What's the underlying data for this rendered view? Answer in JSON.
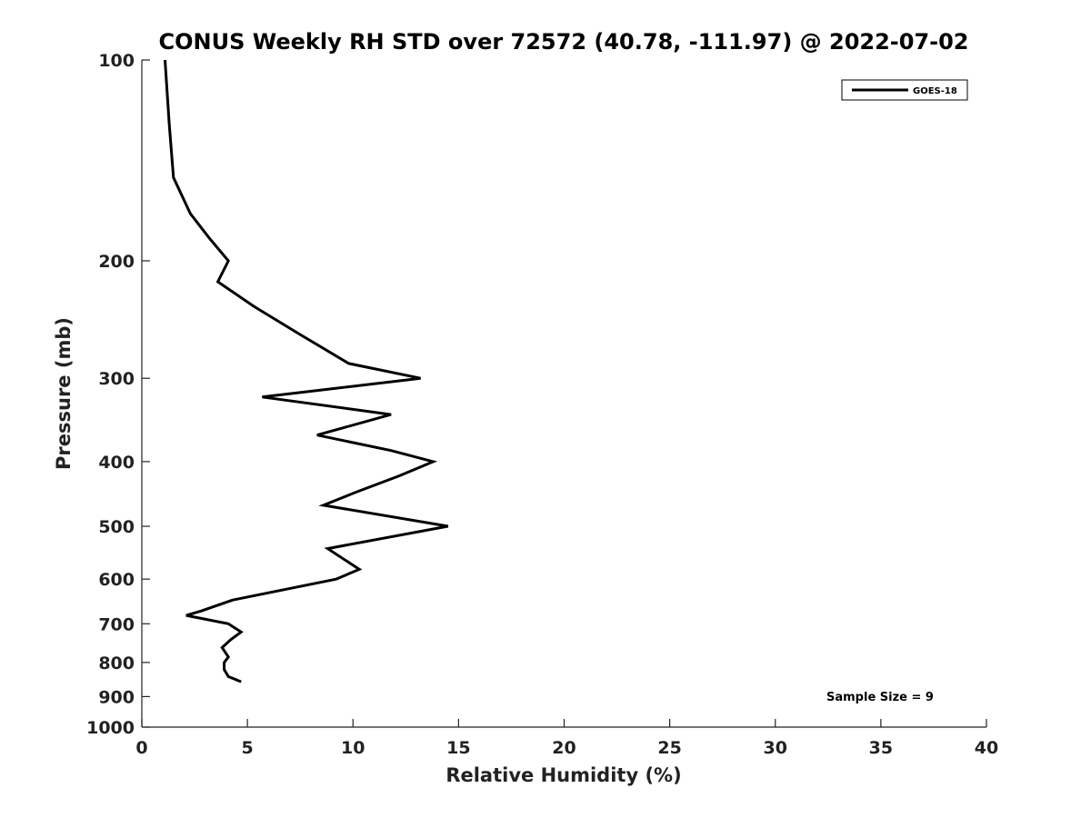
{
  "chart_data": {
    "type": "line",
    "title": "CONUS Weekly RH STD over 72572 (40.78, -111.97) @ 2022-07-02",
    "xlabel": "Relative Humidity (%)",
    "ylabel": "Pressure (mb)",
    "xlim": [
      0,
      40
    ],
    "ylim": [
      100,
      1000
    ],
    "y_scale": "log",
    "y_reversed": true,
    "x_ticks": [
      "0",
      "5",
      "10",
      "15",
      "20",
      "25",
      "30",
      "35",
      "40"
    ],
    "y_ticks": [
      "100",
      "200",
      "300",
      "400",
      "500",
      "600",
      "700",
      "800",
      "900",
      "1000"
    ],
    "grid": false,
    "legend_position": "top-right",
    "series": [
      {
        "name": "GOES-18",
        "color": "#000000",
        "x": [
          1.1,
          1.3,
          1.5,
          2.3,
          3.2,
          4.1,
          3.6,
          5.3,
          7.5,
          9.8,
          13.2,
          5.7,
          11.8,
          8.3,
          11.8,
          13.8,
          12.2,
          10.1,
          8.6,
          14.5,
          8.8,
          10.3,
          9.2,
          4.3,
          2.8,
          2.1,
          4.1,
          4.7,
          4.2,
          3.8,
          4.1,
          3.9,
          3.9,
          4.1,
          4.7
        ],
        "y": [
          100,
          125,
          150,
          170,
          185,
          200,
          215,
          234,
          258,
          285,
          300,
          320,
          340,
          365,
          385,
          400,
          420,
          445,
          465,
          500,
          540,
          580,
          600,
          645,
          670,
          680,
          700,
          720,
          740,
          760,
          785,
          800,
          820,
          840,
          855
        ]
      }
    ],
    "annotations": [
      "Sample Size = 9"
    ]
  }
}
